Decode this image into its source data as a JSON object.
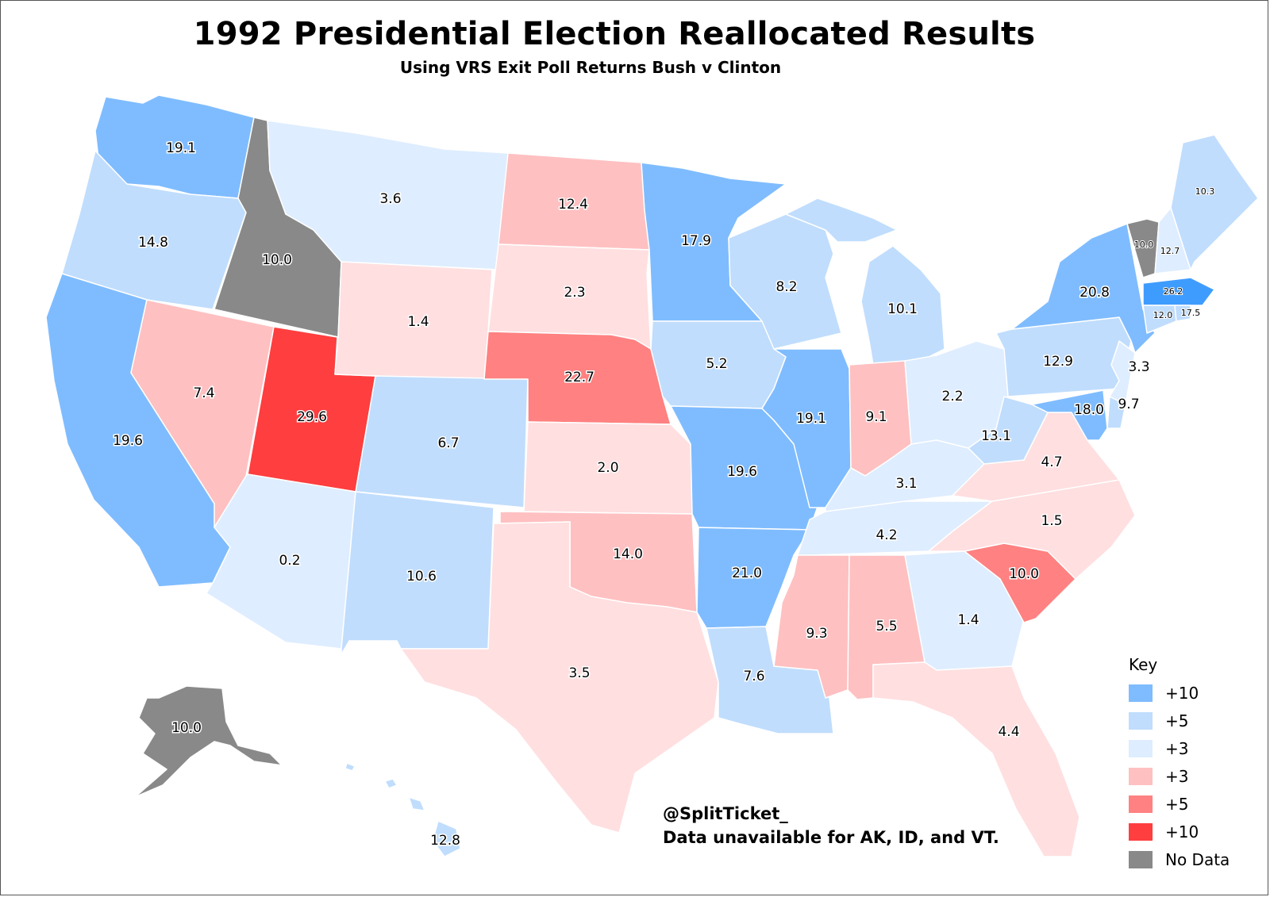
{
  "title": "1992 Presidential Election Reallocated Results",
  "subtitle": "Using VRS Exit Poll Returns Bush v Clinton",
  "credit": {
    "handle": "@SplitTicket_",
    "note": "Data unavailable for AK, ID, and VT."
  },
  "legend": {
    "title": "Key",
    "items": [
      {
        "label": "+10",
        "color": "#7fbcff"
      },
      {
        "label": "+5",
        "color": "#c0ddfd"
      },
      {
        "label": "+3",
        "color": "#deedff"
      },
      {
        "label": "+3",
        "color": "#ffc0c1"
      },
      {
        "label": "+5",
        "color": "#ff8181"
      },
      {
        "label": "+10",
        "color": "#ff3e3f"
      },
      {
        "label": "No Data",
        "color": "#898989"
      }
    ]
  },
  "states": {
    "WA": {
      "value": "19.1"
    },
    "OR": {
      "value": "14.8"
    },
    "CA": {
      "value": "19.6"
    },
    "ID": {
      "value": "10.0"
    },
    "NV": {
      "value": "7.4"
    },
    "UT": {
      "value": "29.6"
    },
    "AZ": {
      "value": "0.2"
    },
    "MT": {
      "value": "3.6"
    },
    "WY": {
      "value": "1.4"
    },
    "CO": {
      "value": "6.7"
    },
    "NM": {
      "value": "10.6"
    },
    "ND": {
      "value": "12.4"
    },
    "SD": {
      "value": "2.3"
    },
    "NE": {
      "value": "22.7"
    },
    "KS": {
      "value": "2.0"
    },
    "OK": {
      "value": "14.0"
    },
    "TX": {
      "value": "3.5"
    },
    "MN": {
      "value": "17.9"
    },
    "IA": {
      "value": "5.2"
    },
    "MO": {
      "value": "19.6"
    },
    "AR": {
      "value": "21.0"
    },
    "LA": {
      "value": "7.6"
    },
    "WI": {
      "value": "8.2"
    },
    "IL": {
      "value": "19.1"
    },
    "MI": {
      "value": "10.1"
    },
    "IN": {
      "value": "9.1"
    },
    "OH": {
      "value": "2.2"
    },
    "KY": {
      "value": "3.1"
    },
    "TN": {
      "value": "4.2"
    },
    "MS": {
      "value": "9.3"
    },
    "AL": {
      "value": "5.5"
    },
    "GA": {
      "value": "1.4"
    },
    "FL": {
      "value": "4.4"
    },
    "SC": {
      "value": "10.0"
    },
    "NC": {
      "value": "1.5"
    },
    "VA": {
      "value": "4.7"
    },
    "WV": {
      "value": "13.1"
    },
    "PA": {
      "value": "12.9"
    },
    "NY": {
      "value": "20.8"
    },
    "NJ": {
      "value": "3.3"
    },
    "DE": {
      "value": "9.7"
    },
    "MD": {
      "value": "18.0"
    },
    "VT": {
      "value": "10.0"
    },
    "NH": {
      "value": "12.7"
    },
    "ME": {
      "value": "10.3"
    },
    "MA": {
      "value": "26.2"
    },
    "CT": {
      "value": "12.0"
    },
    "RI": {
      "value": "17.5"
    },
    "AK": {
      "value": "10.0"
    },
    "HI": {
      "value": "12.8"
    }
  }
}
